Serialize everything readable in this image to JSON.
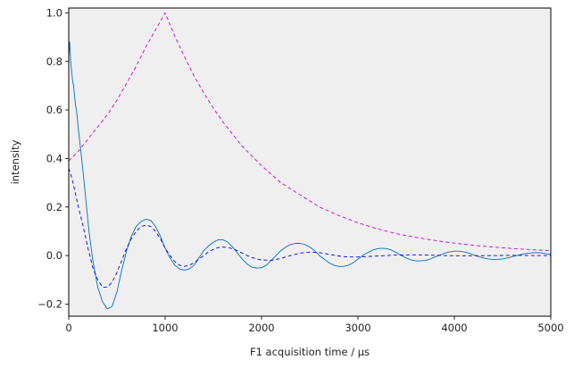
{
  "chart_data": {
    "type": "line",
    "title": "",
    "xlabel": "F1 acquisition time / µs",
    "ylabel": "intensity",
    "xlim": [
      0,
      5000
    ],
    "ylim": [
      -0.25,
      1.02
    ],
    "xticks": [
      0,
      1000,
      2000,
      3000,
      4000,
      5000
    ],
    "yticks": [
      -0.2,
      0.0,
      0.2,
      0.4,
      0.6,
      0.8,
      1.0
    ],
    "xtick_labels": [
      "0",
      "1000",
      "2000",
      "3000",
      "4000",
      "5000"
    ],
    "ytick_labels": [
      "−0.2",
      "0.0",
      "0.2",
      "0.4",
      "0.6",
      "0.8",
      "1.0"
    ],
    "background": "#efefef",
    "grid": false,
    "legend": "none",
    "series": [
      {
        "style": "solid",
        "color": "#0072bd",
        "x": [
          0,
          10,
          20,
          30,
          40,
          50,
          60,
          70,
          80,
          90,
          100,
          120,
          150,
          180,
          210,
          250,
          300,
          350,
          400,
          450,
          500,
          550,
          600,
          650,
          700,
          750,
          800,
          850,
          900,
          950,
          1000,
          1050,
          1100,
          1150,
          1200,
          1250,
          1300,
          1350,
          1400,
          1450,
          1500,
          1550,
          1600,
          1650,
          1700,
          1750,
          1800,
          1850,
          1900,
          1950,
          2000,
          2050,
          2100,
          2150,
          2200,
          2250,
          2300,
          2350,
          2400,
          2450,
          2500,
          2550,
          2600,
          2650,
          2700,
          2750,
          2800,
          2850,
          2900,
          2950,
          3000,
          3050,
          3100,
          3150,
          3200,
          3250,
          3300,
          3350,
          3400,
          3450,
          3500,
          3550,
          3600,
          3650,
          3700,
          3750,
          3800,
          3850,
          3900,
          3950,
          4000,
          4050,
          4100,
          4150,
          4200,
          4250,
          4300,
          4350,
          4400,
          4450,
          4500,
          4550,
          4600,
          4650,
          4700,
          4750,
          4800,
          4850,
          4900,
          4950,
          5000
        ],
        "y": [
          0.82,
          0.88,
          0.8,
          0.76,
          0.72,
          0.7,
          0.66,
          0.62,
          0.6,
          0.56,
          0.52,
          0.45,
          0.34,
          0.22,
          0.1,
          -0.02,
          -0.13,
          -0.19,
          -0.22,
          -0.21,
          -0.15,
          -0.06,
          0.02,
          0.08,
          0.12,
          0.14,
          0.15,
          0.145,
          0.12,
          0.08,
          0.03,
          -0.01,
          -0.04,
          -0.055,
          -0.06,
          -0.055,
          -0.04,
          -0.01,
          0.02,
          0.04,
          0.055,
          0.065,
          0.065,
          0.055,
          0.035,
          0.01,
          -0.015,
          -0.035,
          -0.048,
          -0.052,
          -0.05,
          -0.04,
          -0.02,
          0.0,
          0.02,
          0.035,
          0.045,
          0.05,
          0.05,
          0.045,
          0.035,
          0.02,
          0.0,
          -0.015,
          -0.03,
          -0.04,
          -0.045,
          -0.045,
          -0.04,
          -0.03,
          -0.015,
          0.0,
          0.012,
          0.022,
          0.028,
          0.03,
          0.028,
          0.022,
          0.012,
          0.0,
          -0.01,
          -0.018,
          -0.022,
          -0.022,
          -0.02,
          -0.014,
          -0.006,
          0.002,
          0.01,
          0.015,
          0.018,
          0.018,
          0.015,
          0.01,
          0.003,
          -0.004,
          -0.01,
          -0.014,
          -0.016,
          -0.016,
          -0.014,
          -0.01,
          -0.005,
          0.0,
          0.005,
          0.009,
          0.011,
          0.012,
          0.011,
          0.008,
          0.004
        ]
      },
      {
        "style": "dashed",
        "color": "#0000ee",
        "x": [
          0,
          25,
          50,
          100,
          150,
          200,
          250,
          300,
          350,
          400,
          450,
          500,
          550,
          600,
          650,
          700,
          750,
          800,
          850,
          900,
          950,
          1000,
          1050,
          1100,
          1150,
          1200,
          1250,
          1300,
          1350,
          1400,
          1450,
          1500,
          1550,
          1600,
          1650,
          1700,
          1750,
          1800,
          1850,
          1900,
          1950,
          2000,
          2100,
          2200,
          2300,
          2400,
          2500,
          2600,
          2700,
          2800,
          2900,
          3000,
          3200,
          3400,
          3600,
          3800,
          4000,
          4200,
          4400,
          4600,
          4800,
          5000
        ],
        "y": [
          0.36,
          0.33,
          0.29,
          0.2,
          0.12,
          0.03,
          -0.05,
          -0.1,
          -0.13,
          -0.13,
          -0.11,
          -0.07,
          -0.02,
          0.03,
          0.07,
          0.1,
          0.12,
          0.125,
          0.12,
          0.1,
          0.07,
          0.03,
          0.0,
          -0.025,
          -0.04,
          -0.045,
          -0.04,
          -0.03,
          -0.015,
          0.0,
          0.015,
          0.025,
          0.033,
          0.035,
          0.033,
          0.028,
          0.02,
          0.01,
          0.0,
          -0.008,
          -0.014,
          -0.018,
          -0.02,
          -0.012,
          0.0,
          0.01,
          0.014,
          0.012,
          0.005,
          -0.002,
          -0.006,
          -0.006,
          -0.002,
          0.002,
          0.003,
          0.001,
          -0.001,
          -0.001,
          0.0,
          0.001,
          0.0,
          0.0
        ]
      },
      {
        "style": "dashed",
        "color": "#cc00cc",
        "x": [
          0,
          100,
          200,
          300,
          400,
          500,
          600,
          700,
          800,
          900,
          1000,
          1100,
          1200,
          1300,
          1400,
          1500,
          1600,
          1800,
          2000,
          2200,
          2400,
          2600,
          2800,
          3000,
          3200,
          3400,
          3600,
          3800,
          4000,
          4200,
          4400,
          4600,
          4800,
          5000
        ],
        "y": [
          0.39,
          0.43,
          0.48,
          0.53,
          0.58,
          0.64,
          0.71,
          0.78,
          0.86,
          0.93,
          1.0,
          0.905,
          0.82,
          0.74,
          0.67,
          0.607,
          0.55,
          0.45,
          0.37,
          0.3,
          0.25,
          0.2,
          0.165,
          0.135,
          0.11,
          0.09,
          0.075,
          0.062,
          0.051,
          0.042,
          0.035,
          0.029,
          0.024,
          0.02
        ]
      }
    ]
  }
}
